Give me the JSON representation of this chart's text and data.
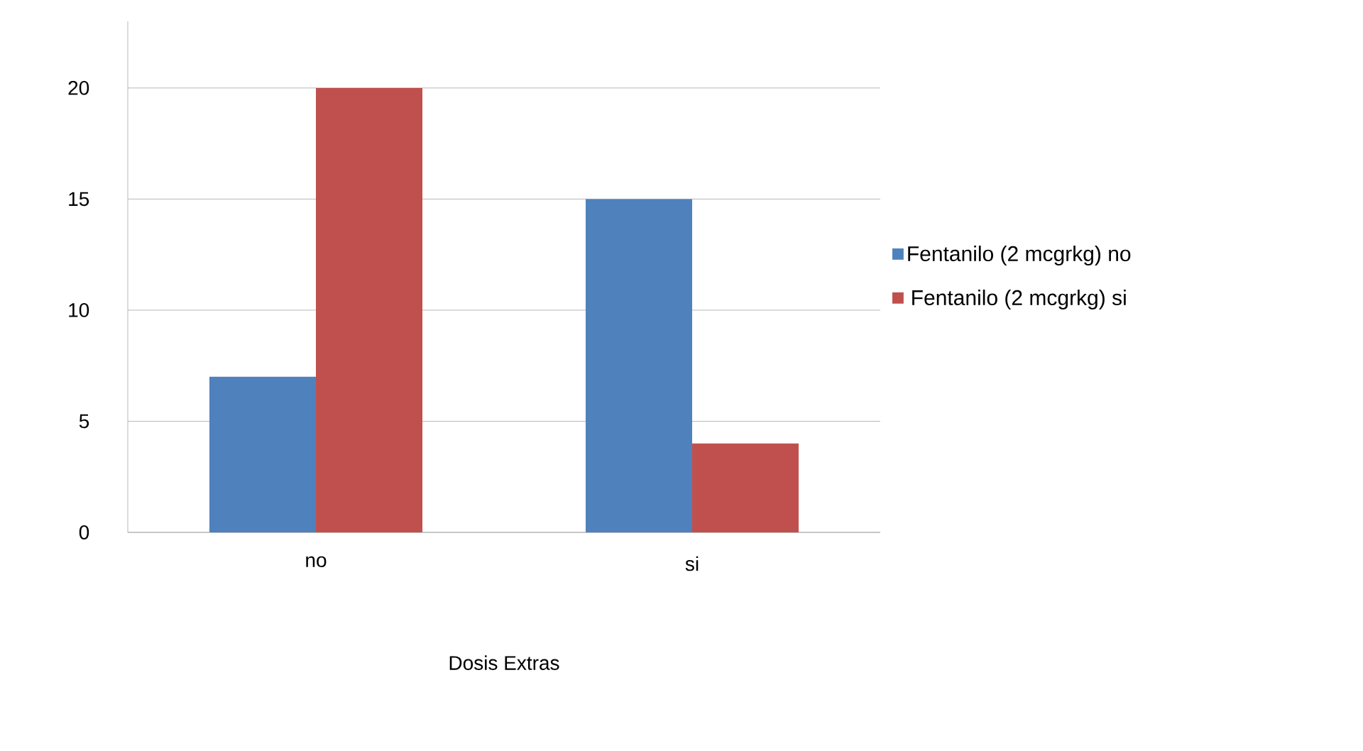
{
  "chart_data": {
    "type": "bar",
    "xlabel": "Dosis Extras",
    "categories": [
      "no",
      "si"
    ],
    "series": [
      {
        "name": "Fentanilo (2 mcgrkg) no",
        "color": "#4f81bd",
        "values": [
          7,
          15
        ]
      },
      {
        "name": "Fentanilo (2 mcgrkg) si",
        "color": "#c0504d",
        "values": [
          20,
          4
        ]
      }
    ],
    "ylim": [
      0,
      23
    ],
    "yticks": [
      0,
      5,
      10,
      15,
      20
    ],
    "grid": "y",
    "legend": "right"
  }
}
